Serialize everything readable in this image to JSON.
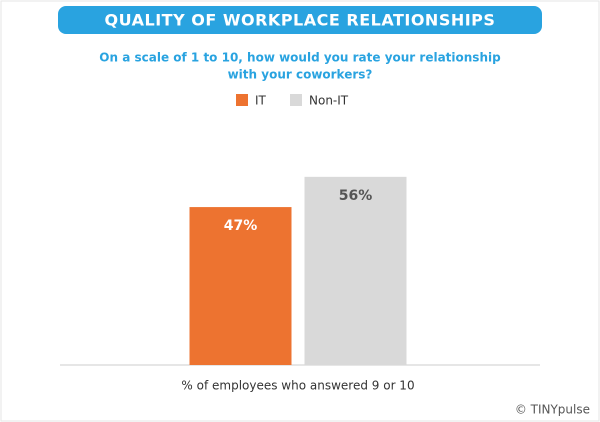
{
  "chart_data": {
    "type": "bar",
    "title": "QUALITY OF WORKPLACE RELATIONSHIPS",
    "subtitle": [
      "On a scale of 1 to 10, how would you rate your relationship",
      "with your coworkers?"
    ],
    "categories": [
      "% of employees who answered 9 or 10"
    ],
    "series": [
      {
        "name": "IT",
        "color": "#ed7330",
        "values": [
          47
        ],
        "value_labels": [
          "47%"
        ]
      },
      {
        "name": "Non-IT",
        "color": "#d9d9d9",
        "values": [
          56
        ],
        "value_labels": [
          "56%"
        ]
      }
    ],
    "source": "© TINYpulse"
  }
}
